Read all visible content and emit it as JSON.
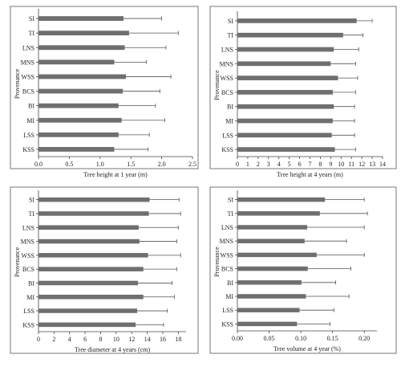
{
  "chart_data": [
    {
      "type": "bar",
      "orientation": "horizontal",
      "categories": [
        "SI",
        "TI",
        "LNS",
        "MNS",
        "WSS",
        "BCS",
        "BI",
        "MI",
        "LSS",
        "KSS"
      ],
      "values": [
        1.38,
        1.47,
        1.4,
        1.23,
        1.42,
        1.37,
        1.3,
        1.35,
        1.3,
        1.23
      ],
      "errors": [
        0.62,
        0.8,
        0.67,
        0.52,
        0.73,
        0.6,
        0.6,
        0.7,
        0.5,
        0.55
      ],
      "xlabel": "Tree height at 1 year (m)",
      "ylabel": "Provenance",
      "xlim": [
        0,
        2.5
      ],
      "xticks": [
        "0.0",
        "0.5",
        "1.0",
        "1.5",
        "2.0",
        "2.5"
      ],
      "xtick_values": [
        0,
        0.5,
        1.0,
        1.5,
        2.0,
        2.5
      ]
    },
    {
      "type": "bar",
      "orientation": "horizontal",
      "categories": [
        "SI",
        "TI",
        "LNS",
        "MNS",
        "WSS",
        "BCS",
        "BI",
        "MI",
        "LSS",
        "KSS"
      ],
      "values": [
        11.5,
        10.2,
        9.3,
        9.0,
        9.7,
        9.2,
        9.3,
        9.2,
        9.1,
        9.4
      ],
      "errors": [
        1.5,
        1.9,
        2.4,
        2.4,
        1.9,
        2.2,
        2.0,
        2.1,
        2.2,
        2.0
      ],
      "xlabel": "Tree height at 4 years (m)",
      "ylabel": "Provenance",
      "xlim": [
        0,
        14
      ],
      "xticks": [
        "0",
        "1",
        "2",
        "3",
        "4",
        "5",
        "6",
        "7",
        "8",
        "9",
        "10",
        "11",
        "12",
        "13",
        "14"
      ],
      "xtick_values": [
        0,
        1,
        2,
        3,
        4,
        5,
        6,
        7,
        8,
        9,
        10,
        11,
        12,
        13,
        14
      ]
    },
    {
      "type": "bar",
      "orientation": "horizontal",
      "categories": [
        "SI",
        "TI",
        "LNS",
        "MNS",
        "WSS",
        "BCS",
        "BI",
        "MI",
        "LSS",
        "KSS"
      ],
      "values": [
        14.3,
        14.2,
        12.9,
        13.0,
        14.1,
        13.5,
        12.8,
        13.5,
        12.7,
        12.5
      ],
      "errors": [
        3.8,
        4.1,
        5.1,
        4.8,
        4.2,
        4.3,
        4.4,
        4.0,
        3.9,
        3.6
      ],
      "xlabel": "Tree diameter at 4 years (cm)",
      "ylabel": "Provenance",
      "xlim": [
        0,
        19
      ],
      "xticks": [
        "0",
        "2",
        "4",
        "6",
        "8",
        "10",
        "12",
        "14",
        "16",
        "18"
      ],
      "xtick_values": [
        0,
        2,
        4,
        6,
        8,
        10,
        12,
        14,
        16,
        18
      ]
    },
    {
      "type": "bar",
      "orientation": "horizontal",
      "categories": [
        "SI",
        "TI",
        "LNS",
        "MNS",
        "WSS",
        "BCS",
        "BI",
        "MI",
        "LSS",
        "KSS"
      ],
      "values": [
        0.138,
        0.13,
        0.11,
        0.106,
        0.125,
        0.111,
        0.101,
        0.108,
        0.098,
        0.094
      ],
      "errors": [
        0.062,
        0.075,
        0.09,
        0.066,
        0.075,
        0.068,
        0.054,
        0.068,
        0.054,
        0.052
      ],
      "xlabel": "Tree volume at 4 year (%)",
      "ylabel": "Provenance",
      "xlim": [
        0,
        0.22
      ],
      "xticks": [
        "0.00",
        "0.05",
        "0.10",
        "0.15",
        "0.20"
      ],
      "xtick_values": [
        0,
        0.05,
        0.1,
        0.15,
        0.2
      ]
    }
  ]
}
